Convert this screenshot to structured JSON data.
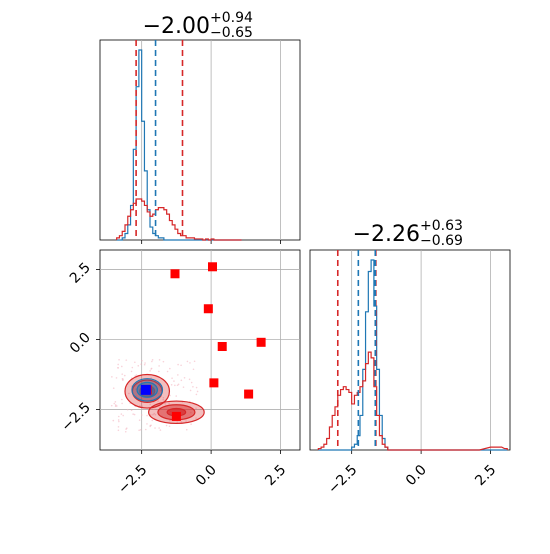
{
  "figure": {
    "panel_1_title": {
      "main": "−2.00",
      "sup": "+0.94",
      "sub": "−0.65"
    },
    "panel_3_title": {
      "main": "−2.26",
      "sup": "+0.63",
      "sub": "−0.69"
    }
  },
  "colors": {
    "blue": "#1f77b4",
    "red": "#d62728",
    "marker_red": "#ff0000",
    "marker_blue": "#0000ff",
    "grid": "#b0b0b0"
  },
  "chart_data": [
    {
      "type": "histogram",
      "panel": "top-left",
      "xlim": [
        -4.0,
        3.2
      ],
      "x_ticks": [
        -2.5,
        0.0,
        2.5
      ],
      "grid": true,
      "bins": [
        -3.4,
        -3.3,
        -3.2,
        -3.1,
        -3.0,
        -2.9,
        -2.8,
        -2.7,
        -2.6,
        -2.5,
        -2.4,
        -2.3,
        -2.2,
        -2.1,
        -2.0,
        -1.9,
        -1.8,
        -1.7,
        -1.6,
        -1.5,
        -1.4,
        -1.3,
        -1.2,
        -1.1,
        -1.0,
        -0.9,
        -0.8,
        -0.7,
        -0.6,
        -0.5,
        -0.4,
        -0.3,
        -0.2,
        -0.1,
        0.0,
        0.1,
        0.2,
        0.3,
        0.4,
        0.5,
        0.6,
        0.7,
        0.8,
        0.9,
        1.0
      ],
      "series": [
        {
          "color": "blue",
          "values": [
            0,
            0,
            0.01,
            0.03,
            0.07,
            0.16,
            0.42,
            0.71,
            0.88,
            0.55,
            0.32,
            0.14,
            0.06,
            0.03,
            0.02,
            0.01,
            0.01,
            0,
            0,
            0,
            0,
            0,
            0,
            0,
            0,
            0,
            0,
            0,
            0,
            0,
            0,
            0,
            0,
            0,
            0,
            0,
            0,
            0,
            0,
            0,
            0,
            0,
            0,
            0,
            0
          ]
        },
        {
          "color": "red",
          "values": [
            0.01,
            0.02,
            0.04,
            0.07,
            0.11,
            0.14,
            0.17,
            0.19,
            0.19,
            0.18,
            0.16,
            0.13,
            0.11,
            0.12,
            0.14,
            0.15,
            0.15,
            0.14,
            0.12,
            0.09,
            0.07,
            0.05,
            0.03,
            0.02,
            0.02,
            0.01,
            0.01,
            0.01,
            0.005,
            0.005,
            0.005,
            0,
            0.005,
            0,
            0.005,
            0,
            0,
            0,
            0,
            0,
            0,
            0,
            0,
            0,
            0
          ]
        }
      ],
      "vlines": [
        {
          "color": "blue",
          "x": -2.0
        },
        {
          "color": "red",
          "x": -2.7
        },
        {
          "color": "red",
          "x": -1.03
        }
      ]
    },
    {
      "type": "scatter+contour",
      "panel": "bottom-left",
      "xlim": [
        -4.0,
        3.2
      ],
      "ylim": [
        -3.95,
        3.2
      ],
      "x_ticks": [
        -2.5,
        0.0,
        2.5
      ],
      "y_ticks": [
        -2.5,
        0.0,
        2.5
      ],
      "grid": true,
      "red_points": [
        [
          -1.3,
          2.35
        ],
        [
          0.05,
          2.6
        ],
        [
          -0.1,
          1.1
        ],
        [
          1.8,
          -0.1
        ],
        [
          0.4,
          -0.25
        ],
        [
          0.1,
          -1.55
        ],
        [
          1.35,
          -1.95
        ],
        [
          -2.3,
          -1.8
        ],
        [
          -1.25,
          -2.75
        ]
      ],
      "blue_point": [
        -2.35,
        -1.8
      ],
      "contours": [
        {
          "color": "red",
          "levels": 3,
          "center": [
            -2.3,
            -1.85
          ],
          "extent": [
            0.8,
            0.6
          ]
        },
        {
          "color": "red",
          "levels": 3,
          "center": [
            -1.25,
            -2.6
          ],
          "extent": [
            1.0,
            0.4
          ]
        },
        {
          "color": "blue",
          "levels": 3,
          "center": [
            -2.3,
            -1.8
          ],
          "extent": [
            0.55,
            0.4
          ]
        }
      ]
    },
    {
      "type": "histogram",
      "panel": "bottom-right",
      "xlim": [
        -4.0,
        3.2
      ],
      "x_ticks": [
        -2.5,
        0.0,
        2.5
      ],
      "grid": true,
      "bins": [
        -3.7,
        -3.6,
        -3.5,
        -3.4,
        -3.3,
        -3.2,
        -3.1,
        -3.0,
        -2.9,
        -2.8,
        -2.7,
        -2.6,
        -2.5,
        -2.4,
        -2.3,
        -2.2,
        -2.1,
        -2.0,
        -1.9,
        -1.8,
        -1.7,
        -1.6,
        -1.5,
        -1.4,
        -1.3,
        -1.2,
        -1.1,
        -1.0,
        -0.9,
        -0.8,
        -0.7,
        -0.6,
        -0.5,
        -0.4,
        -0.3,
        -0.2,
        -0.1,
        0.0,
        0.5,
        1.0,
        1.5,
        2.0,
        2.5,
        2.8,
        3.0
      ],
      "series": [
        {
          "color": "blue",
          "values": [
            0,
            0,
            0,
            0,
            0,
            0,
            0,
            0,
            0,
            0,
            0,
            0,
            0.01,
            0.02,
            0.05,
            0.12,
            0.28,
            0.48,
            0.62,
            0.66,
            0.5,
            0.28,
            0.12,
            0.04,
            0.01,
            0,
            0,
            0,
            0,
            0,
            0,
            0,
            0,
            0,
            0,
            0,
            0,
            0,
            0,
            0,
            0,
            0,
            0,
            0,
            0
          ]
        },
        {
          "color": "red",
          "values": [
            0.005,
            0.01,
            0.02,
            0.04,
            0.08,
            0.12,
            0.15,
            0.19,
            0.21,
            0.22,
            0.21,
            0.2,
            0.16,
            0.19,
            0.2,
            0.22,
            0.24,
            0.3,
            0.34,
            0.32,
            0.22,
            0.12,
            0.05,
            0.02,
            0.01,
            0,
            0,
            0,
            0,
            0,
            0,
            0,
            0,
            0,
            0,
            0,
            0,
            0,
            0,
            0,
            0,
            0,
            0.01,
            0.01,
            0.005
          ]
        }
      ],
      "vlines": [
        {
          "color": "blue",
          "x": -2.26
        },
        {
          "color": "red",
          "x": -3.0
        },
        {
          "color": "red",
          "x": -1.63
        },
        {
          "color": "blue",
          "x": -1.65
        }
      ]
    }
  ]
}
